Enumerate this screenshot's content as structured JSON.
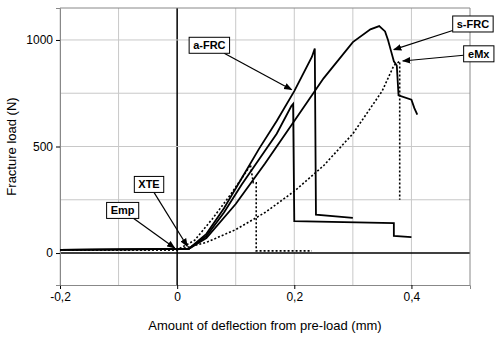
{
  "chart_data": {
    "type": "line",
    "x_label": "Amount of deflection from pre-load (mm)",
    "y_label": "Fracture load (N)",
    "xlim": [
      -0.2,
      0.5
    ],
    "ylim": [
      -150,
      1150
    ],
    "xticks": [
      {
        "value": -0.2,
        "label": "-0,2"
      },
      0,
      {
        "value": 0.2,
        "label": "0,2"
      },
      {
        "value": 0.4,
        "label": "0,4"
      }
    ],
    "yticks": [
      0,
      500,
      1000
    ],
    "grid": true,
    "series": [
      {
        "name": "Emp",
        "color": "#000000",
        "line_style": "dotted",
        "label_at": [
          -0.093,
          200
        ],
        "x": [
          -0.2,
          0,
          0.03,
          0.06,
          0.09,
          0.12,
          0.125,
          0.13,
          0.135,
          0.135,
          0.23
        ],
        "values": [
          15,
          15,
          60,
          160,
          270,
          390,
          415,
          330,
          330,
          10,
          10
        ]
      },
      {
        "name": "XTE",
        "color": "#000000",
        "line_style": "solid",
        "label_at": [
          -0.048,
          322
        ],
        "x": [
          -0.2,
          0.02,
          0.05,
          0.08,
          0.11,
          0.14,
          0.17,
          0.195,
          0.198,
          0.2,
          0.37,
          0.37,
          0.4
        ],
        "values": [
          15,
          20,
          80,
          190,
          320,
          440,
          560,
          690,
          700,
          150,
          140,
          80,
          75
        ]
      },
      {
        "name": "a-FRC",
        "color": "#000000",
        "line_style": "solid",
        "label_at": [
          0.055,
          975
        ],
        "x": [
          -0.2,
          0.02,
          0.05,
          0.08,
          0.11,
          0.14,
          0.17,
          0.2,
          0.23,
          0.235,
          0.237,
          0.3
        ],
        "values": [
          15,
          20,
          90,
          210,
          350,
          490,
          620,
          760,
          920,
          960,
          180,
          165
        ]
      },
      {
        "name": "s-FRC",
        "color": "#000000",
        "line_style": "solid",
        "label_at": [
          0.505,
          1075
        ],
        "x": [
          -0.2,
          0.02,
          0.05,
          0.1,
          0.15,
          0.2,
          0.25,
          0.3,
          0.33,
          0.345,
          0.355,
          0.36,
          0.365,
          0.37,
          0.375,
          0.378,
          0.4,
          0.405,
          0.41
        ],
        "values": [
          15,
          20,
          70,
          230,
          420,
          620,
          820,
          990,
          1050,
          1065,
          1040,
          1000,
          950,
          900,
          880,
          740,
          720,
          680,
          650
        ]
      },
      {
        "name": "eMx",
        "color": "#000000",
        "line_style": "dotted",
        "label_at": [
          0.515,
          935
        ],
        "x": [
          -0.2,
          0,
          0.05,
          0.1,
          0.15,
          0.2,
          0.25,
          0.3,
          0.35,
          0.37,
          0.38,
          0.38
        ],
        "values": [
          15,
          15,
          50,
          110,
          190,
          290,
          410,
          560,
          760,
          880,
          900,
          250
        ]
      }
    ]
  }
}
